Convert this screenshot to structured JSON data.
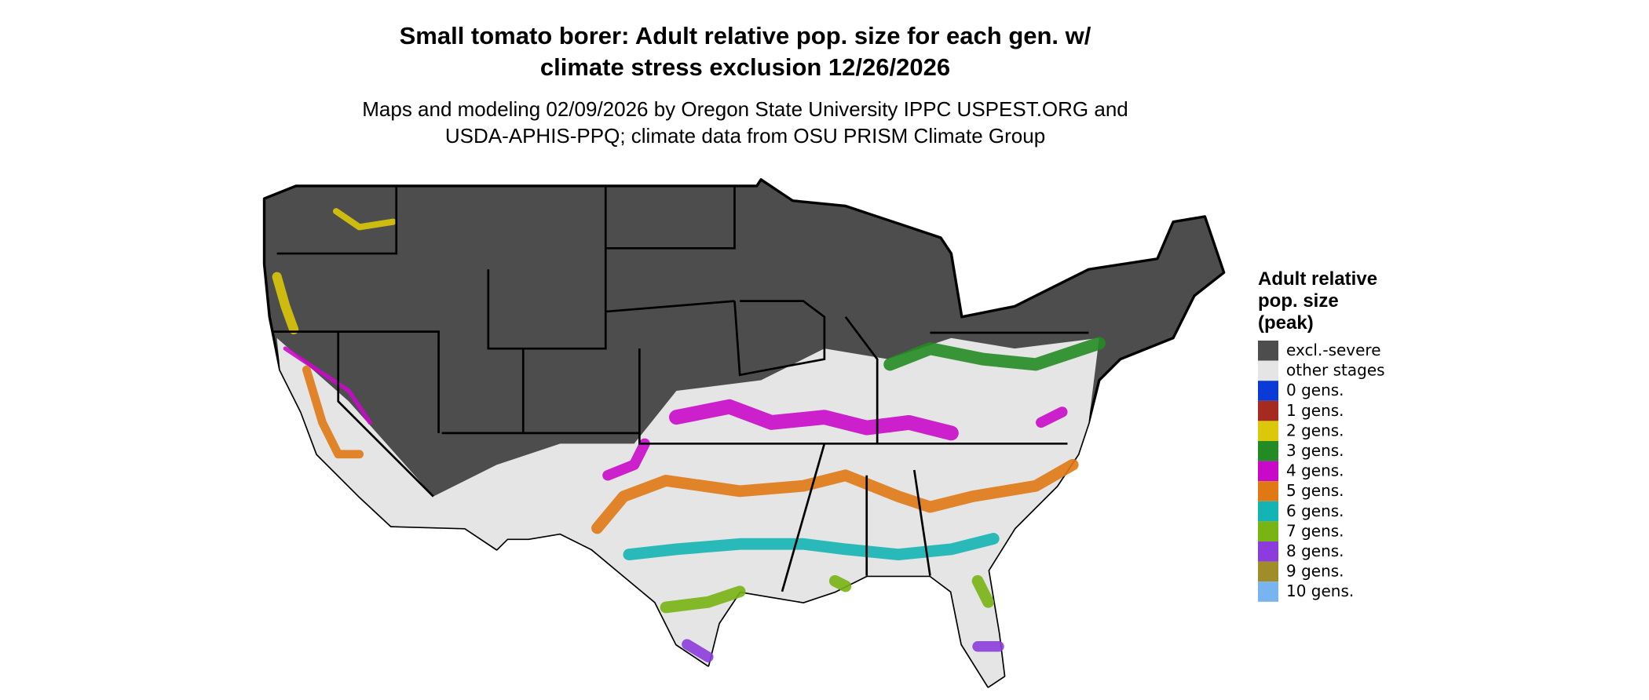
{
  "title_lines": [
    "Small tomato borer: Adult relative pop. size for each gen. w/",
    "climate stress exclusion 12/26/2026"
  ],
  "subtitle_lines": [
    "Maps and modeling 02/09/2026 by Oregon State University IPPC USPEST.ORG and",
    "USDA-APHIS-PPQ; climate data from OSU PRISM Climate Group"
  ],
  "legend": {
    "title_lines": [
      "Adult relative",
      "pop. size",
      "(peak)"
    ],
    "items": [
      {
        "label": "excl.-severe",
        "color": "#4d4d4d"
      },
      {
        "label": "other stages",
        "color": "#e5e5e5"
      },
      {
        "label": "0 gens.",
        "color": "#0a3bd6"
      },
      {
        "label": "1 gens.",
        "color": "#a52a1f"
      },
      {
        "label": "2 gens.",
        "color": "#dcc80a"
      },
      {
        "label": "3 gens.",
        "color": "#238b23"
      },
      {
        "label": "4 gens.",
        "color": "#c80ac8"
      },
      {
        "label": "5 gens.",
        "color": "#e07814"
      },
      {
        "label": "6 gens.",
        "color": "#14b4b4"
      },
      {
        "label": "7 gens.",
        "color": "#78b414"
      },
      {
        "label": "8 gens.",
        "color": "#8c3cdc"
      },
      {
        "label": "9 gens.",
        "color": "#a08c28"
      },
      {
        "label": "10 gens.",
        "color": "#78b4f0"
      }
    ]
  }
}
